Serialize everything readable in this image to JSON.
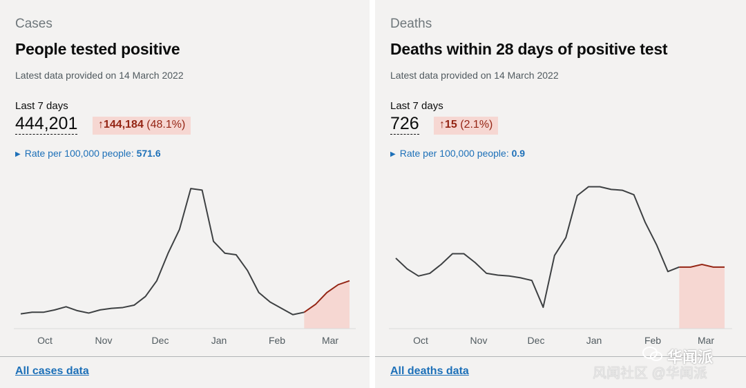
{
  "cards": [
    {
      "category": "Cases",
      "title": "People tested positive",
      "updated": "Latest data provided on 14 March 2022",
      "period": "Last 7 days",
      "value": "444,201",
      "change_arrow": "↑",
      "change_amount": "144,184",
      "change_percent": "(48.1%)",
      "rate_label": "Rate per 100,000 people:",
      "rate_value": "571.6",
      "rate_icon": "triangle-right-icon",
      "footer_link": "All cases data"
    },
    {
      "category": "Deaths",
      "title": "Deaths within 28 days of positive test",
      "updated": "Latest data provided on 14 March 2022",
      "period": "Last 7 days",
      "value": "726",
      "change_arrow": "↑",
      "change_amount": "15",
      "change_percent": "(2.1%)",
      "rate_label": "Rate per 100,000 people:",
      "rate_value": "0.9",
      "rate_icon": "triangle-right-icon",
      "footer_link": "All deaths data"
    }
  ],
  "colors": {
    "card_bg": "#f3f2f1",
    "line": "#3d4042",
    "recent_line": "#942514",
    "recent_fill": "#f6d7d2",
    "link": "#1d70b8"
  },
  "watermark": {
    "brand": "华闻派",
    "sub": "风闻社区 @华闻派"
  },
  "chart_data": [
    {
      "type": "line",
      "title": "People tested positive",
      "x_ticks": [
        "Oct",
        "Nov",
        "Dec",
        "Jan",
        "Feb",
        "Mar"
      ],
      "x": [
        "Sep 15",
        "Sep 22",
        "Sep 29",
        "Oct 6",
        "Oct 13",
        "Oct 20",
        "Oct 27",
        "Nov 3",
        "Nov 10",
        "Nov 17",
        "Nov 24",
        "Dec 1",
        "Dec 8",
        "Dec 15",
        "Dec 22",
        "Dec 29",
        "Jan 1",
        "Jan 5",
        "Jan 12",
        "Jan 19",
        "Jan 26",
        "Feb 2",
        "Feb 9",
        "Feb 16",
        "Feb 23",
        "Feb 28",
        "Mar 3",
        "Mar 7",
        "Mar 11",
        "Mar 14"
      ],
      "values": [
        3,
        5,
        5,
        8,
        12,
        7,
        4,
        8,
        10,
        11,
        14,
        25,
        45,
        80,
        110,
        162,
        160,
        95,
        80,
        78,
        58,
        30,
        18,
        10,
        2,
        5,
        15,
        30,
        40,
        45
      ],
      "recent_from_index": 25,
      "ylim": [
        0,
        170
      ],
      "grid": false
    },
    {
      "type": "line",
      "title": "Deaths within 28 days of positive test",
      "x_ticks": [
        "Oct",
        "Nov",
        "Dec",
        "Jan",
        "Feb",
        "Mar"
      ],
      "x": [
        "Sep 15",
        "Sep 22",
        "Sep 29",
        "Oct 6",
        "Oct 13",
        "Oct 20",
        "Oct 27",
        "Nov 3",
        "Nov 10",
        "Nov 17",
        "Nov 24",
        "Dec 1",
        "Dec 8",
        "Dec 15",
        "Dec 22",
        "Dec 29",
        "Jan 3",
        "Jan 8",
        "Jan 14",
        "Jan 21",
        "Jan 28",
        "Feb 4",
        "Feb 10",
        "Feb 16",
        "Feb 23",
        "Feb 28",
        "Mar 3",
        "Mar 7",
        "Mar 11",
        "Mar 14"
      ],
      "values": [
        155,
        143,
        135,
        138,
        148,
        160,
        160,
        150,
        138,
        136,
        135,
        133,
        130,
        100,
        158,
        178,
        225,
        235,
        235,
        232,
        231,
        226,
        195,
        170,
        140,
        145,
        145,
        148,
        145,
        145
      ],
      "recent_from_index": 25,
      "ylim": [
        90,
        240
      ],
      "grid": false
    }
  ]
}
